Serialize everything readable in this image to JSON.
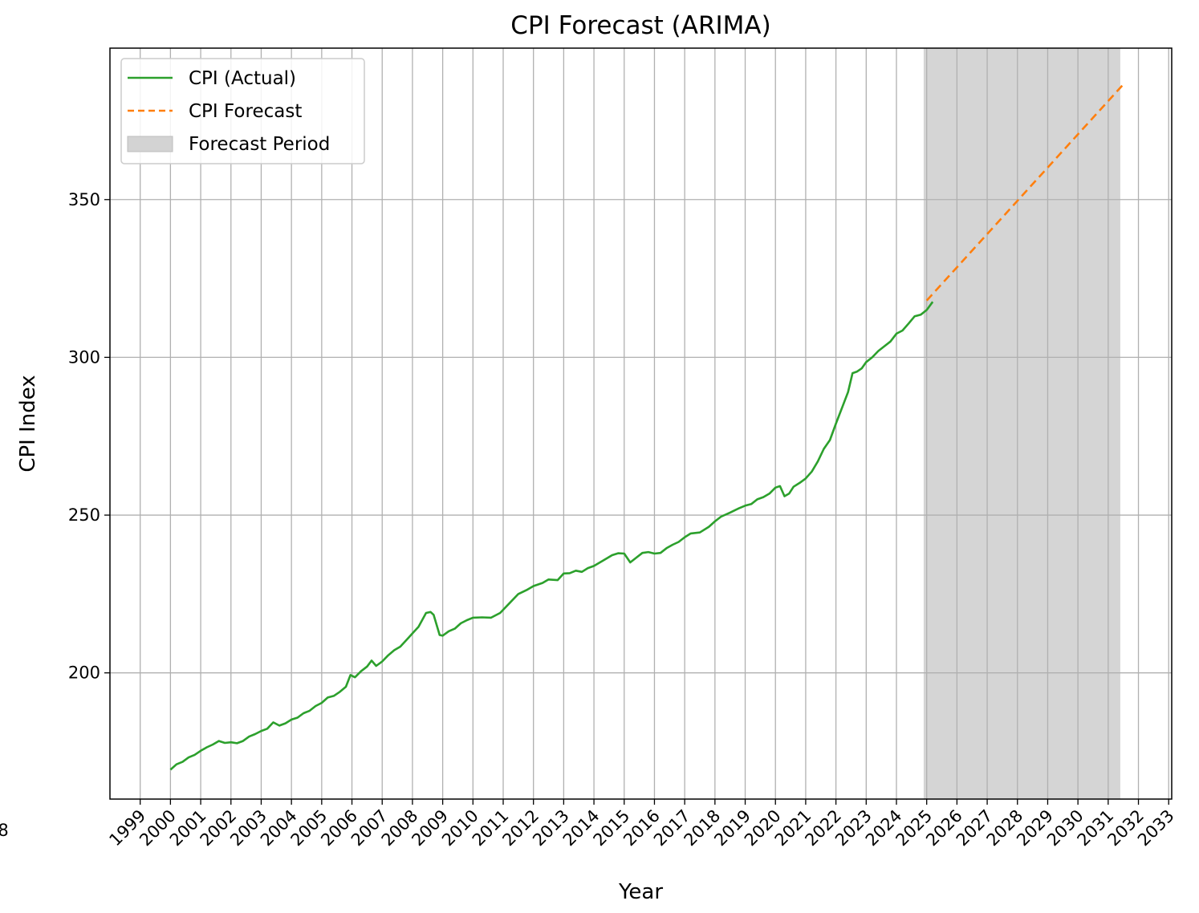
{
  "chart_data": {
    "type": "line",
    "title": "CPI Forecast (ARIMA)",
    "xlabel": "Year",
    "ylabel": "CPI Index",
    "xlim": [
      1998.0,
      2033.1
    ],
    "ylim": [
      160,
      398
    ],
    "x_ticks": [
      1999,
      2000,
      2001,
      2002,
      2003,
      2004,
      2005,
      2006,
      2007,
      2008,
      2009,
      2010,
      2011,
      2012,
      2013,
      2014,
      2015,
      2016,
      2017,
      2018,
      2019,
      2020,
      2021,
      2022,
      2023,
      2024,
      2025,
      2026,
      2027,
      2028,
      2029,
      2030,
      2031,
      2032,
      2033
    ],
    "x_tick_labels": [
      "1999",
      "2000",
      "2001",
      "2002",
      "2003",
      "2004",
      "2005",
      "2006",
      "2007",
      "2008",
      "2009",
      "2010",
      "2011",
      "2012",
      "2013",
      "2014",
      "2015",
      "2016",
      "2017",
      "2018",
      "2019",
      "2020",
      "2021",
      "2022",
      "2023",
      "2024",
      "2025",
      "2026",
      "2027",
      "2028",
      "2029",
      "2030",
      "2031",
      "2032",
      "2033"
    ],
    "extra_tick_label": "8",
    "y_ticks": [
      200,
      250,
      300,
      350
    ],
    "y_tick_labels": [
      "200",
      "250",
      "300",
      "350"
    ],
    "grid": true,
    "legend_position": "upper-left",
    "series": [
      {
        "name": "CPI (Actual)",
        "style": "solid",
        "color": "#2ca02c",
        "points": [
          [
            2000.0,
            169.3
          ],
          [
            2000.2,
            171.0
          ],
          [
            2000.4,
            171.8
          ],
          [
            2000.6,
            173.2
          ],
          [
            2000.8,
            174.0
          ],
          [
            2001.0,
            175.3
          ],
          [
            2001.2,
            176.4
          ],
          [
            2001.4,
            177.3
          ],
          [
            2001.6,
            178.4
          ],
          [
            2001.8,
            177.8
          ],
          [
            2002.0,
            178.0
          ],
          [
            2002.2,
            177.7
          ],
          [
            2002.4,
            178.4
          ],
          [
            2002.6,
            179.8
          ],
          [
            2002.8,
            180.6
          ],
          [
            2003.0,
            181.6
          ],
          [
            2003.2,
            182.3
          ],
          [
            2003.4,
            184.3
          ],
          [
            2003.6,
            183.3
          ],
          [
            2003.8,
            184.0
          ],
          [
            2004.0,
            185.2
          ],
          [
            2004.2,
            185.8
          ],
          [
            2004.4,
            187.2
          ],
          [
            2004.6,
            188.0
          ],
          [
            2004.8,
            189.5
          ],
          [
            2005.0,
            190.5
          ],
          [
            2005.2,
            192.2
          ],
          [
            2005.4,
            192.7
          ],
          [
            2005.6,
            194.0
          ],
          [
            2005.8,
            195.6
          ],
          [
            2005.95,
            199.3
          ],
          [
            2006.1,
            198.6
          ],
          [
            2006.3,
            200.5
          ],
          [
            2006.5,
            202.0
          ],
          [
            2006.65,
            203.9
          ],
          [
            2006.8,
            202.2
          ],
          [
            2007.0,
            203.6
          ],
          [
            2007.2,
            205.6
          ],
          [
            2007.4,
            207.2
          ],
          [
            2007.6,
            208.3
          ],
          [
            2007.8,
            210.4
          ],
          [
            2008.0,
            212.5
          ],
          [
            2008.2,
            214.6
          ],
          [
            2008.45,
            219.0
          ],
          [
            2008.6,
            219.3
          ],
          [
            2008.7,
            218.4
          ],
          [
            2008.9,
            212.0
          ],
          [
            2009.0,
            211.8
          ],
          [
            2009.2,
            213.2
          ],
          [
            2009.4,
            214.0
          ],
          [
            2009.6,
            215.7
          ],
          [
            2009.8,
            216.7
          ],
          [
            2010.0,
            217.5
          ],
          [
            2010.3,
            217.6
          ],
          [
            2010.6,
            217.5
          ],
          [
            2010.9,
            219.0
          ],
          [
            2011.2,
            222.0
          ],
          [
            2011.5,
            225.0
          ],
          [
            2011.8,
            226.4
          ],
          [
            2012.0,
            227.5
          ],
          [
            2012.3,
            228.5
          ],
          [
            2012.5,
            229.6
          ],
          [
            2012.8,
            229.4
          ],
          [
            2013.0,
            231.5
          ],
          [
            2013.2,
            231.6
          ],
          [
            2013.4,
            232.4
          ],
          [
            2013.6,
            232.0
          ],
          [
            2013.8,
            233.2
          ],
          [
            2014.0,
            233.9
          ],
          [
            2014.3,
            235.6
          ],
          [
            2014.6,
            237.3
          ],
          [
            2014.8,
            237.9
          ],
          [
            2015.0,
            237.8
          ],
          [
            2015.2,
            235.0
          ],
          [
            2015.4,
            236.5
          ],
          [
            2015.6,
            238.0
          ],
          [
            2015.8,
            238.3
          ],
          [
            2016.0,
            237.8
          ],
          [
            2016.2,
            238.0
          ],
          [
            2016.4,
            239.5
          ],
          [
            2016.6,
            240.6
          ],
          [
            2016.8,
            241.5
          ],
          [
            2017.0,
            243.0
          ],
          [
            2017.2,
            244.2
          ],
          [
            2017.5,
            244.5
          ],
          [
            2017.8,
            246.3
          ],
          [
            2018.0,
            248.0
          ],
          [
            2018.2,
            249.5
          ],
          [
            2018.5,
            250.8
          ],
          [
            2018.8,
            252.2
          ],
          [
            2019.0,
            253.0
          ],
          [
            2019.2,
            253.5
          ],
          [
            2019.4,
            255.0
          ],
          [
            2019.6,
            255.7
          ],
          [
            2019.8,
            256.8
          ],
          [
            2020.0,
            258.7
          ],
          [
            2020.15,
            259.2
          ],
          [
            2020.3,
            256.0
          ],
          [
            2020.45,
            256.8
          ],
          [
            2020.6,
            259.0
          ],
          [
            2020.8,
            260.2
          ],
          [
            2021.0,
            261.6
          ],
          [
            2021.2,
            263.8
          ],
          [
            2021.4,
            267.0
          ],
          [
            2021.6,
            271.0
          ],
          [
            2021.8,
            273.8
          ],
          [
            2022.0,
            279.0
          ],
          [
            2022.2,
            284.0
          ],
          [
            2022.4,
            289.0
          ],
          [
            2022.55,
            295.0
          ],
          [
            2022.7,
            295.5
          ],
          [
            2022.85,
            296.5
          ],
          [
            2023.0,
            298.5
          ],
          [
            2023.2,
            300.0
          ],
          [
            2023.4,
            302.0
          ],
          [
            2023.6,
            303.5
          ],
          [
            2023.8,
            305.0
          ],
          [
            2024.0,
            307.5
          ],
          [
            2024.2,
            308.5
          ],
          [
            2024.4,
            310.7
          ],
          [
            2024.6,
            313.0
          ],
          [
            2024.8,
            313.5
          ],
          [
            2025.0,
            315.0
          ],
          [
            2025.2,
            317.6
          ]
        ]
      },
      {
        "name": "CPI Forecast",
        "style": "dashed",
        "color": "#ff7f0e",
        "points": [
          [
            2025.0,
            318.0
          ],
          [
            2031.5,
            386.5
          ]
        ]
      }
    ],
    "shaded_regions": [
      {
        "name": "Forecast Period",
        "x_start": 2024.9,
        "x_end": 2031.4,
        "color": "#d3d3d3"
      }
    ]
  }
}
